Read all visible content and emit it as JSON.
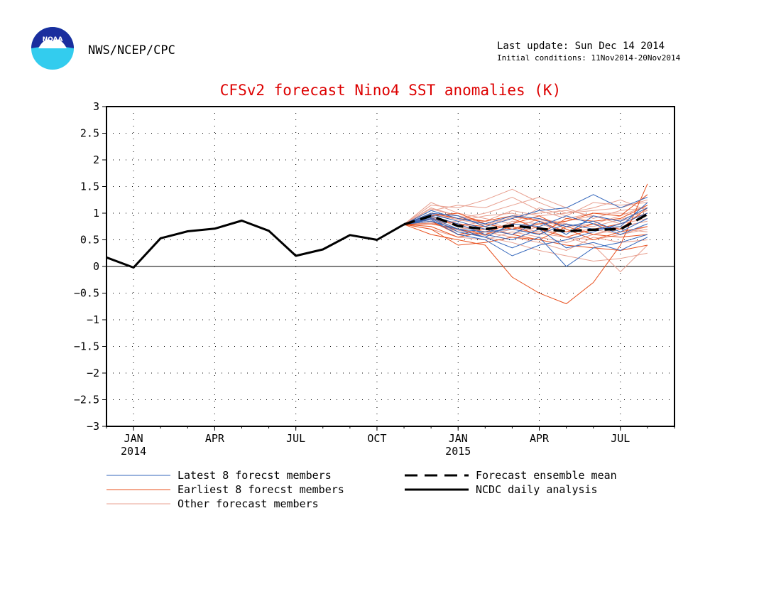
{
  "header": {
    "agency": "NWS/NCEP/CPC",
    "last_update": "Last update: Sun Dec 14 2014",
    "initial_conditions": "Initial conditions: 11Nov2014-20Nov2014",
    "logo_text": "NOAA"
  },
  "colors": {
    "title": "#dd0000",
    "latest": "#3366bb",
    "earliest": "#e8501e",
    "other": "#e8a090",
    "analysis": "#000000",
    "ensemble_mean": "#000000"
  },
  "chart_data": {
    "type": "line",
    "title": "CFSv2 forecast Nino4 SST anomalies (K)",
    "xlabel": "",
    "ylabel": "",
    "ylim": [
      -3,
      3
    ],
    "yticks": [
      3,
      2.5,
      2,
      1.5,
      1,
      0.5,
      0,
      -0.5,
      -1,
      -1.5,
      -2,
      -2.5,
      -3
    ],
    "ytick_labels": [
      "3",
      "2.5",
      "2",
      "1.5",
      "1",
      "0.5",
      "0",
      "−0.5",
      "−1",
      "−1.5",
      "−2",
      "−2.5",
      "−3"
    ],
    "xlim": [
      "2013-12-01",
      "2015-09-01"
    ],
    "xticks": [
      {
        "date": "2014-01-01",
        "label": "JAN",
        "sublabel": "2014"
      },
      {
        "date": "2014-04-01",
        "label": "APR",
        "sublabel": ""
      },
      {
        "date": "2014-07-01",
        "label": "JUL",
        "sublabel": ""
      },
      {
        "date": "2014-10-01",
        "label": "OCT",
        "sublabel": ""
      },
      {
        "date": "2015-01-01",
        "label": "JAN",
        "sublabel": "2015"
      },
      {
        "date": "2015-04-01",
        "label": "APR",
        "sublabel": ""
      },
      {
        "date": "2015-07-01",
        "label": "JUL",
        "sublabel": ""
      }
    ],
    "grid": true,
    "zero_line": true,
    "legend": [
      {
        "label": "Latest 8 forecst members",
        "series": "latest",
        "style": "thin-blue"
      },
      {
        "label": "Forecast ensemble mean",
        "series": "mean",
        "style": "dashed-black"
      },
      {
        "label": "Earliest 8 forecst members",
        "series": "earliest",
        "style": "thin-orange"
      },
      {
        "label": "NCDC daily analysis",
        "series": "analysis",
        "style": "solid-black"
      },
      {
        "label": "Other forecast members",
        "series": "other",
        "style": "thin-pink"
      }
    ],
    "analysis": {
      "name": "NCDC daily analysis",
      "dates": [
        "2013-12-01",
        "2014-01-01",
        "2014-02-01",
        "2014-03-01",
        "2014-04-01",
        "2014-05-01",
        "2014-06-01",
        "2014-07-01",
        "2014-08-01",
        "2014-09-01",
        "2014-10-01",
        "2014-11-01"
      ],
      "values": [
        0.17,
        -0.02,
        0.53,
        0.66,
        0.71,
        0.86,
        0.67,
        0.2,
        0.32,
        0.59,
        0.5,
        0.79
      ]
    },
    "forecast_dates": [
      "2014-11-01",
      "2014-12-01",
      "2015-01-01",
      "2015-02-01",
      "2015-03-01",
      "2015-04-01",
      "2015-05-01",
      "2015-06-01",
      "2015-07-01",
      "2015-08-01"
    ],
    "ensemble_mean": {
      "name": "Forecast ensemble mean",
      "values": [
        0.79,
        0.95,
        0.76,
        0.7,
        0.77,
        0.71,
        0.66,
        0.69,
        0.7,
        0.98
      ]
    },
    "members": {
      "latest": [
        [
          0.79,
          1.0,
          0.95,
          0.75,
          0.9,
          1.05,
          1.1,
          1.35,
          1.1,
          1.3
        ],
        [
          0.79,
          0.92,
          0.7,
          0.55,
          0.35,
          0.55,
          0.0,
          0.35,
          0.45,
          0.6
        ],
        [
          0.79,
          0.88,
          0.6,
          0.5,
          0.2,
          0.4,
          0.5,
          0.65,
          0.8,
          1.0
        ],
        [
          0.79,
          1.05,
          0.9,
          0.8,
          0.95,
          0.9,
          0.75,
          0.85,
          0.65,
          0.9
        ],
        [
          0.79,
          0.95,
          0.8,
          0.6,
          0.5,
          0.7,
          0.35,
          0.45,
          0.3,
          0.55
        ],
        [
          0.79,
          0.85,
          0.7,
          0.65,
          0.7,
          0.6,
          0.8,
          0.7,
          0.75,
          1.2
        ],
        [
          0.79,
          0.98,
          0.85,
          0.7,
          0.6,
          0.85,
          0.6,
          0.95,
          0.85,
          1.1
        ],
        [
          0.79,
          0.9,
          0.65,
          0.55,
          0.8,
          0.75,
          0.95,
          0.8,
          0.6,
          0.8
        ]
      ],
      "earliest": [
        [
          0.79,
          0.7,
          0.4,
          0.45,
          0.55,
          0.5,
          0.4,
          0.35,
          0.3,
          0.4
        ],
        [
          0.79,
          0.6,
          0.5,
          0.4,
          -0.2,
          -0.5,
          -0.7,
          -0.3,
          0.4,
          1.55
        ],
        [
          0.79,
          1.0,
          0.9,
          0.85,
          0.95,
          0.85,
          0.65,
          0.8,
          0.7,
          1.1
        ],
        [
          0.79,
          0.85,
          0.6,
          0.7,
          0.6,
          0.5,
          0.75,
          0.6,
          0.55,
          0.6
        ],
        [
          0.79,
          0.95,
          1.0,
          0.8,
          0.7,
          0.8,
          0.85,
          1.0,
          0.95,
          1.35
        ],
        [
          0.79,
          0.75,
          0.55,
          0.65,
          0.8,
          0.95,
          0.7,
          0.5,
          0.65,
          0.75
        ],
        [
          0.79,
          0.9,
          0.8,
          0.75,
          0.9,
          0.7,
          0.55,
          0.7,
          0.8,
          1.0
        ],
        [
          0.79,
          0.8,
          0.7,
          0.6,
          0.75,
          0.6,
          0.9,
          0.85,
          0.9,
          1.15
        ]
      ],
      "other": [
        [
          0.79,
          1.15,
          1.1,
          1.25,
          1.45,
          1.2,
          1.0,
          1.1,
          1.25,
          1.05
        ],
        [
          0.79,
          1.05,
          1.15,
          1.1,
          1.3,
          1.05,
          0.9,
          1.0,
          1.0,
          0.95
        ],
        [
          0.79,
          0.95,
          0.75,
          0.85,
          0.7,
          0.9,
          0.8,
          0.6,
          0.75,
          0.85
        ],
        [
          0.79,
          0.85,
          0.65,
          0.55,
          0.45,
          0.3,
          0.2,
          0.1,
          0.15,
          0.25
        ],
        [
          0.79,
          1.1,
          0.95,
          0.8,
          0.95,
          1.0,
          1.05,
          0.95,
          0.85,
          1.0
        ],
        [
          0.79,
          0.9,
          0.7,
          0.75,
          0.6,
          0.75,
          0.55,
          0.4,
          -0.1,
          0.4
        ],
        [
          0.79,
          0.8,
          0.85,
          0.95,
          1.0,
          0.85,
          0.75,
          0.8,
          0.95,
          1.15
        ],
        [
          0.79,
          0.95,
          0.6,
          0.6,
          0.85,
          0.8,
          0.65,
          0.7,
          0.6,
          0.75
        ],
        [
          0.79,
          1.2,
          1.0,
          0.9,
          0.8,
          1.1,
          0.95,
          1.2,
          1.15,
          1.2
        ],
        [
          0.79,
          0.7,
          0.55,
          0.5,
          0.65,
          0.55,
          0.45,
          0.6,
          0.7,
          0.65
        ],
        [
          0.79,
          1.0,
          0.9,
          1.0,
          1.15,
          1.3,
          1.1,
          0.9,
          1.05,
          1.1
        ],
        [
          0.79,
          0.88,
          0.8,
          0.7,
          0.75,
          0.65,
          0.85,
          0.95,
          0.8,
          0.9
        ],
        [
          0.79,
          0.93,
          0.75,
          0.65,
          0.55,
          0.45,
          0.3,
          0.55,
          0.45,
          0.5
        ],
        [
          0.79,
          1.08,
          0.95,
          0.85,
          1.05,
          0.95,
          1.0,
          1.05,
          1.1,
          1.25
        ],
        [
          0.79,
          0.82,
          0.68,
          0.58,
          0.7,
          0.62,
          0.55,
          0.5,
          0.6,
          0.7
        ],
        [
          0.79,
          0.98,
          0.88,
          0.78,
          0.92,
          0.88,
          0.78,
          0.75,
          0.88,
          1.05
        ]
      ]
    }
  }
}
